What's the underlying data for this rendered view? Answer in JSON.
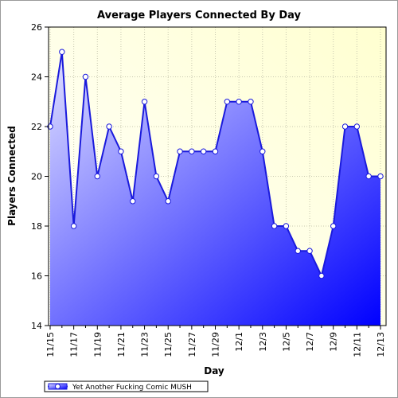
{
  "chart_data": {
    "type": "area",
    "title": "Average Players Connected By Day",
    "xlabel": "Day",
    "ylabel": "Players Connected",
    "ylim": [
      14,
      26
    ],
    "yticks": [
      14,
      16,
      18,
      20,
      22,
      24,
      26
    ],
    "x": [
      "11/15",
      "11/16",
      "11/17",
      "11/18",
      "11/19",
      "11/20",
      "11/21",
      "11/22",
      "11/23",
      "11/24",
      "11/25",
      "11/26",
      "11/27",
      "11/28",
      "11/29",
      "11/30",
      "12/1",
      "12/2",
      "12/3",
      "12/4",
      "12/5",
      "12/6",
      "12/7",
      "12/8",
      "12/9",
      "12/10",
      "12/11",
      "12/12",
      "12/13"
    ],
    "xtick_labels": [
      "11/15",
      "11/17",
      "11/19",
      "11/21",
      "11/23",
      "11/25",
      "11/27",
      "11/29",
      "12/1",
      "12/3",
      "12/5",
      "12/7",
      "12/9",
      "12/11",
      "12/13"
    ],
    "series": [
      {
        "name": "Yet Another Fucking Comic MUSH",
        "values": [
          22,
          25,
          18,
          24,
          20,
          22,
          21,
          19,
          23,
          20,
          19,
          21,
          21,
          21,
          21,
          23,
          23,
          23,
          21,
          18,
          18,
          17,
          17,
          16,
          18,
          22,
          22,
          20,
          20
        ]
      }
    ],
    "grid": true,
    "legend_position": "bottom-left",
    "colors": {
      "line": "#1a1adc",
      "fill_light": "#d8d8ff",
      "fill_dark": "#0000ff",
      "plot_bg_light": "#ffffff",
      "plot_bg_warm": "#ffffd0",
      "grid": "#c8c8b0"
    }
  }
}
